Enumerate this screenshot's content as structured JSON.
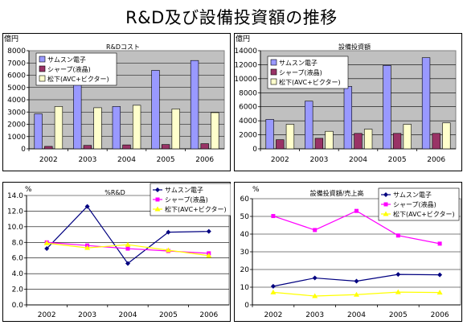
{
  "page": {
    "title": "R&D及び設備投資額の推移"
  },
  "chart_data": [
    {
      "id": "rd-cost",
      "type": "bar",
      "title": "R&Dコスト",
      "unit": "億円",
      "categories": [
        "2002",
        "2003",
        "2004",
        "2005",
        "2006"
      ],
      "yticks": [
        "0",
        "1000",
        "2000",
        "3000",
        "4000",
        "5000",
        "6000",
        "7000",
        "8000"
      ],
      "ylim": [
        0,
        8000
      ],
      "legend": "top-left",
      "series": [
        {
          "name": "サムスン電子",
          "color": "#9999ff",
          "values": [
            2850,
            5600,
            3450,
            6400,
            7200
          ]
        },
        {
          "name": "シャープ(液晶)",
          "color": "#993366",
          "values": [
            200,
            280,
            320,
            350,
            420
          ]
        },
        {
          "name": "松下(AVC+ビクター)",
          "color": "#ffffcc",
          "values": [
            3450,
            3350,
            3550,
            3250,
            2950
          ]
        }
      ]
    },
    {
      "id": "capex",
      "type": "bar",
      "title": "設備投資額",
      "unit": "億円",
      "categories": [
        "2002",
        "2003",
        "2004",
        "2005",
        "2006"
      ],
      "yticks": [
        "0",
        "2000",
        "4000",
        "6000",
        "8000",
        "10000",
        "12000",
        "14000"
      ],
      "ylim": [
        0,
        14000
      ],
      "legend": "top-left",
      "series": [
        {
          "name": "サムスン電子",
          "color": "#9999ff",
          "values": [
            4200,
            6800,
            8900,
            11900,
            13000
          ]
        },
        {
          "name": "シャープ(液晶)",
          "color": "#993366",
          "values": [
            1300,
            1500,
            2200,
            2200,
            2200
          ]
        },
        {
          "name": "松下(AVC+ビクター)",
          "color": "#ffffcc",
          "values": [
            3500,
            2500,
            2800,
            3500,
            3700
          ]
        }
      ]
    },
    {
      "id": "rd-pct",
      "type": "line",
      "title": "%R&D",
      "unit": "%",
      "categories": [
        "2002",
        "2003",
        "2004",
        "2005",
        "2006"
      ],
      "yticks": [
        "0.0",
        "2.0",
        "4.0",
        "6.0",
        "8.0",
        "10.0",
        "12.0",
        "14.0"
      ],
      "ylim": [
        0,
        14
      ],
      "legend": "top-right",
      "series": [
        {
          "name": "サムスン電子",
          "color": "#000080",
          "marker": "diamond",
          "values": [
            7.2,
            12.6,
            5.3,
            9.3,
            9.4
          ]
        },
        {
          "name": "シャープ(液晶)",
          "color": "#ff00ff",
          "marker": "square",
          "values": [
            8.0,
            7.6,
            7.2,
            6.9,
            6.6
          ]
        },
        {
          "name": "松下(AVC+ビクター)",
          "color": "#ffff00",
          "marker": "triangle",
          "values": [
            7.9,
            7.3,
            7.7,
            7.0,
            6.3
          ]
        }
      ]
    },
    {
      "id": "capex-ratio",
      "type": "line",
      "title": "設備投資額/売上高",
      "unit": "%",
      "categories": [
        "2002",
        "2003",
        "2004",
        "2005",
        "2006"
      ],
      "yticks": [
        "0",
        "10",
        "20",
        "30",
        "40",
        "50",
        "60"
      ],
      "ylim": [
        0,
        60
      ],
      "legend": "top-right",
      "series": [
        {
          "name": "サムスン電子",
          "color": "#000080",
          "marker": "diamond",
          "values": [
            10.5,
            15.2,
            13.4,
            17.2,
            17.0
          ]
        },
        {
          "name": "シャープ(液晶)",
          "color": "#ff00ff",
          "marker": "square",
          "values": [
            50.2,
            42.3,
            53.1,
            39.2,
            34.6
          ]
        },
        {
          "name": "松下(AVC+ビクター)",
          "color": "#ffff00",
          "marker": "triangle",
          "values": [
            7.1,
            5.0,
            5.8,
            7.2,
            7.0
          ]
        }
      ]
    }
  ]
}
